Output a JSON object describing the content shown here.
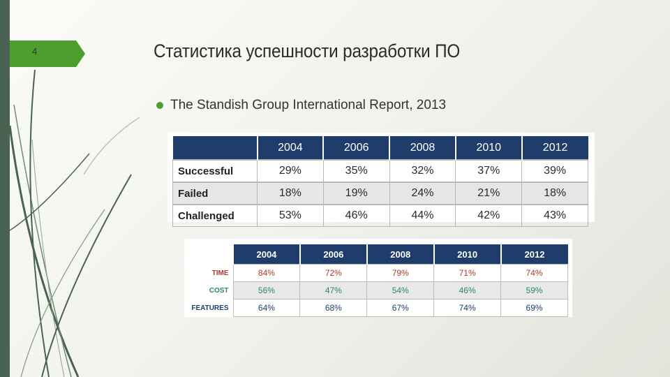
{
  "slide": {
    "number": "4",
    "title": "Статистика успешности разработки ПО",
    "bullet": "The Standish Group International Report, 2013",
    "accent_color": "#4e9e2f",
    "sidebar_color": "#4a6251"
  },
  "table1": {
    "header_color": "#1f3d6b",
    "columns": [
      "",
      "2004",
      "2006",
      "2008",
      "2010",
      "2012"
    ],
    "rows": [
      {
        "label": "Successful",
        "values": [
          "29%",
          "35%",
          "32%",
          "37%",
          "39%"
        ]
      },
      {
        "label": "Failed",
        "values": [
          "18%",
          "19%",
          "24%",
          "21%",
          "18%"
        ]
      },
      {
        "label": "Challenged",
        "values": [
          "53%",
          "46%",
          "44%",
          "42%",
          "43%"
        ]
      }
    ]
  },
  "table2": {
    "header_color": "#1f3d6b",
    "columns": [
      "",
      "2004",
      "2006",
      "2008",
      "2010",
      "2012"
    ],
    "rows": [
      {
        "label": "TIME",
        "color": "#b03a2e",
        "values": [
          "84%",
          "72%",
          "79%",
          "71%",
          "74%"
        ]
      },
      {
        "label": "COST",
        "color": "#2e8b57",
        "values": [
          "56%",
          "47%",
          "54%",
          "46%",
          "59%"
        ]
      },
      {
        "label": "FEATURES",
        "color": "#1f3d6b",
        "values": [
          "64%",
          "68%",
          "67%",
          "74%",
          "69%"
        ]
      }
    ]
  }
}
